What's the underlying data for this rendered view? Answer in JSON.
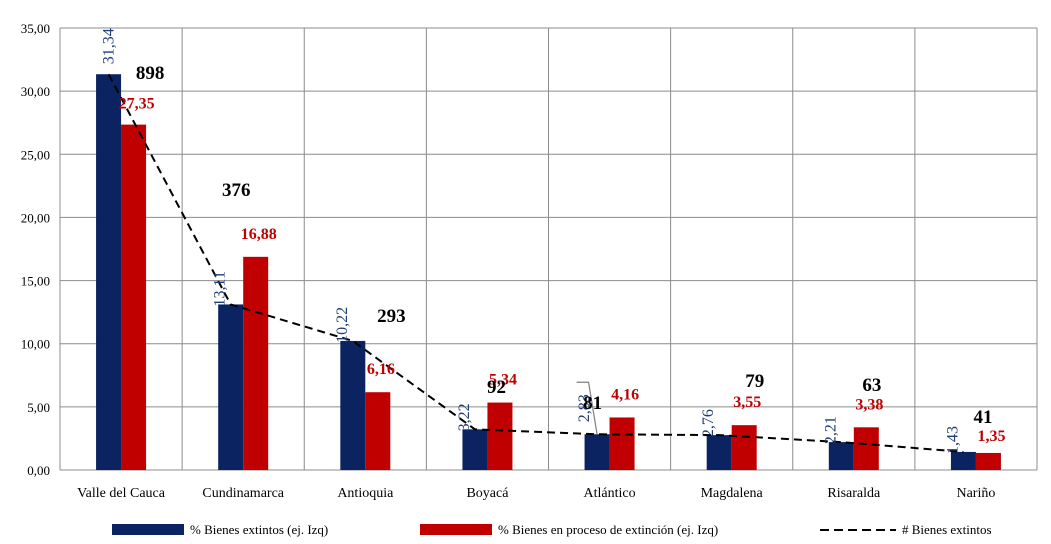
{
  "chart_data": {
    "type": "bar",
    "categories": [
      "Valle del Cauca",
      "Cundinamarca",
      "Antioquia",
      "Boyacá",
      "Atlántico",
      "Magdalena",
      "Risaralda",
      "Nariño"
    ],
    "ylim": [
      0,
      35
    ],
    "y_ticks": [
      "0,00",
      "5,00",
      "10,00",
      "15,00",
      "20,00",
      "25,00",
      "30,00",
      "35,00"
    ],
    "grid": true,
    "legend_position": "bottom",
    "series": [
      {
        "name": "% Bienes extintos (ej. Izq)",
        "type": "bar",
        "axis": "left",
        "color": "#0b2360",
        "values": [
          31.34,
          13.11,
          10.22,
          3.22,
          2.83,
          2.76,
          2.21,
          1.43
        ],
        "labels": [
          "31,34",
          "13,11",
          "10,22",
          "3,22",
          "2,83",
          "2,76",
          "2,21",
          "1,43"
        ]
      },
      {
        "name": "% Bienes en proceso de extinción  (ej. Izq)",
        "type": "bar",
        "axis": "left",
        "color": "#c00000",
        "values": [
          27.35,
          16.88,
          6.16,
          5.34,
          4.16,
          3.55,
          3.38,
          1.35
        ],
        "labels": [
          "27,35",
          "16,88",
          "6,16",
          "5,34",
          "4,16",
          "3,55",
          "3,38",
          "1,35"
        ]
      },
      {
        "name": "# Bienes extintos",
        "type": "line",
        "style": "dashed",
        "color": "#000000",
        "values": [
          898,
          376,
          293,
          92,
          81,
          79,
          63,
          41
        ],
        "labels": [
          "898",
          "376",
          "293",
          "92",
          "81",
          "79",
          "63",
          "41"
        ]
      }
    ]
  }
}
